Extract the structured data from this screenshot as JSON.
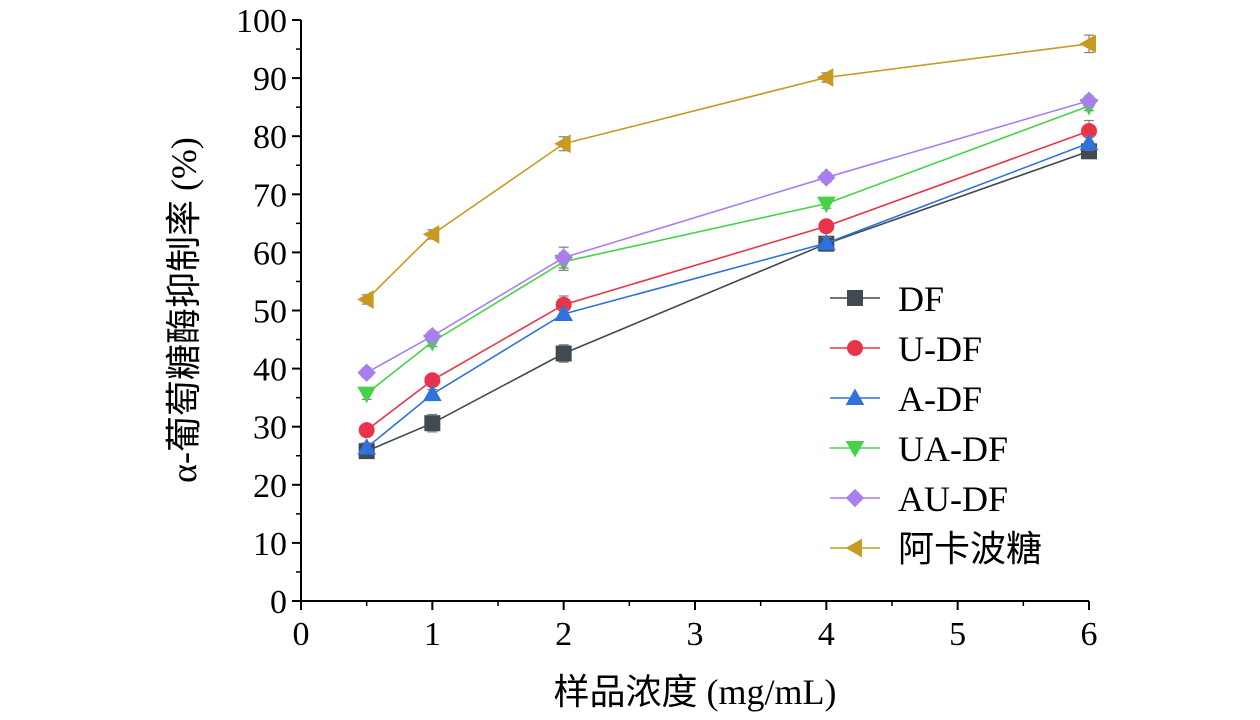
{
  "chart_data": {
    "type": "line",
    "xlabel": "样品浓度 (mg/mL)",
    "ylabel": "α-葡萄糖酶抑制率 (%)",
    "xlim": [
      0,
      6
    ],
    "ylim": [
      0,
      100
    ],
    "xticks": [
      "0",
      "1",
      "2",
      "3",
      "4",
      "5",
      "6"
    ],
    "yticks": [
      "0",
      "10",
      "20",
      "30",
      "40",
      "50",
      "60",
      "70",
      "80",
      "90",
      "100"
    ],
    "grid": false,
    "legend_position": "bottom-right",
    "x": [
      0.5,
      1,
      2,
      4,
      6
    ],
    "series": [
      {
        "name": "DF",
        "marker": "square",
        "color": "#404a50",
        "values": [
          25.8,
          30.6,
          42.6,
          61.5,
          77.4
        ],
        "errors": [
          1.0,
          1.5,
          1.5,
          1.2,
          1.2
        ]
      },
      {
        "name": "U-DF",
        "marker": "circle",
        "color": "#e8344a",
        "values": [
          29.4,
          38.0,
          51.0,
          64.5,
          80.9
        ],
        "errors": [
          0.8,
          0.8,
          1.5,
          0.8,
          1.8
        ]
      },
      {
        "name": "A-DF",
        "marker": "triangle-up",
        "color": "#2f72dc",
        "values": [
          26.4,
          35.6,
          49.4,
          61.6,
          78.8
        ],
        "errors": [
          0.8,
          0.8,
          0.8,
          1.0,
          1.2
        ]
      },
      {
        "name": "UA-DF",
        "marker": "triangle-down",
        "color": "#46d246",
        "values": [
          35.7,
          44.6,
          58.4,
          68.4,
          85.2
        ],
        "errors": [
          1.0,
          0.8,
          1.5,
          0.8,
          0.8
        ]
      },
      {
        "name": "AU-DF",
        "marker": "diamond",
        "color": "#a97ff0",
        "values": [
          39.3,
          45.6,
          59.1,
          72.9,
          86.1
        ],
        "errors": [
          0.8,
          0.8,
          1.8,
          0.8,
          0.8
        ]
      },
      {
        "name": "阿卡波糖",
        "marker": "triangle-left",
        "color": "#c89a20",
        "values": [
          51.9,
          63.1,
          78.7,
          90.1,
          95.9
        ],
        "errors": [
          0.8,
          0.8,
          1.2,
          0.8,
          1.5
        ]
      }
    ]
  }
}
